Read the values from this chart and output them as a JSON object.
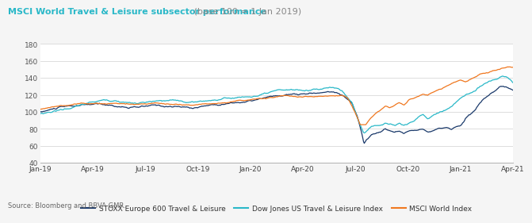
{
  "title_bold": "MSCI World Travel & Leisure subsector performance",
  "title_normal": " (base 100 = 1 Jan 2019)",
  "title_bold_color": "#2ab8c8",
  "title_normal_color": "#888888",
  "source": "Source: Bloomberg and BBVA GMR.",
  "ylim": [
    40,
    180
  ],
  "yticks": [
    40,
    60,
    80,
    100,
    120,
    140,
    160,
    180
  ],
  "xtick_labels": [
    "Jan-19",
    "Apr-19",
    "Jul-19",
    "Oct-19",
    "Jan-20",
    "Apr-20",
    "Jul-20",
    "Oct-20",
    "Jan-21",
    "Apr-21"
  ],
  "colors": {
    "stoxx": "#1b3a6b",
    "dowjones": "#2ab8c8",
    "msci": "#f07820"
  },
  "legend": [
    "STOXX Europe 600 Travel & Leisure",
    "Dow Jones US Travel & Leisure Index",
    "MSCI World Index"
  ],
  "background": "#f5f5f5",
  "plot_bg": "#ffffff",
  "n_points": 650,
  "stoxx_points": [
    [
      0.0,
      100
    ],
    [
      0.04,
      105
    ],
    [
      0.08,
      106
    ],
    [
      0.12,
      107
    ],
    [
      0.16,
      105
    ],
    [
      0.2,
      103
    ],
    [
      0.24,
      104
    ],
    [
      0.28,
      103
    ],
    [
      0.32,
      101
    ],
    [
      0.36,
      105
    ],
    [
      0.4,
      108
    ],
    [
      0.44,
      110
    ],
    [
      0.48,
      113
    ],
    [
      0.52,
      115
    ],
    [
      0.56,
      115
    ],
    [
      0.6,
      117
    ],
    [
      0.62,
      118
    ],
    [
      0.64,
      115
    ],
    [
      0.66,
      105
    ],
    [
      0.67,
      90
    ],
    [
      0.68,
      70
    ],
    [
      0.685,
      57
    ],
    [
      0.69,
      62
    ],
    [
      0.7,
      68
    ],
    [
      0.71,
      70
    ],
    [
      0.72,
      72
    ],
    [
      0.73,
      75
    ],
    [
      0.74,
      73
    ],
    [
      0.75,
      72
    ],
    [
      0.76,
      73
    ],
    [
      0.77,
      70
    ],
    [
      0.78,
      72
    ],
    [
      0.79,
      73
    ],
    [
      0.8,
      74
    ],
    [
      0.81,
      76
    ],
    [
      0.82,
      75
    ],
    [
      0.83,
      76
    ],
    [
      0.84,
      78
    ],
    [
      0.85,
      78
    ],
    [
      0.86,
      79
    ],
    [
      0.87,
      78
    ],
    [
      0.88,
      80
    ],
    [
      0.89,
      82
    ],
    [
      0.9,
      90
    ],
    [
      0.91,
      95
    ],
    [
      0.92,
      100
    ],
    [
      0.93,
      108
    ],
    [
      0.94,
      112
    ],
    [
      0.95,
      115
    ],
    [
      0.96,
      118
    ],
    [
      0.97,
      122
    ],
    [
      0.98,
      124
    ],
    [
      0.99,
      122
    ],
    [
      1.0,
      118
    ]
  ],
  "dj_points": [
    [
      0.0,
      98
    ],
    [
      0.04,
      103
    ],
    [
      0.08,
      108
    ],
    [
      0.12,
      113
    ],
    [
      0.16,
      115
    ],
    [
      0.2,
      112
    ],
    [
      0.24,
      113
    ],
    [
      0.28,
      112
    ],
    [
      0.32,
      110
    ],
    [
      0.36,
      113
    ],
    [
      0.4,
      116
    ],
    [
      0.44,
      118
    ],
    [
      0.48,
      120
    ],
    [
      0.52,
      122
    ],
    [
      0.56,
      121
    ],
    [
      0.6,
      124
    ],
    [
      0.62,
      125
    ],
    [
      0.64,
      120
    ],
    [
      0.66,
      108
    ],
    [
      0.67,
      92
    ],
    [
      0.68,
      78
    ],
    [
      0.685,
      72
    ],
    [
      0.69,
      75
    ],
    [
      0.7,
      80
    ],
    [
      0.71,
      82
    ],
    [
      0.72,
      83
    ],
    [
      0.73,
      85
    ],
    [
      0.74,
      84
    ],
    [
      0.75,
      83
    ],
    [
      0.76,
      85
    ],
    [
      0.77,
      82
    ],
    [
      0.78,
      85
    ],
    [
      0.79,
      87
    ],
    [
      0.8,
      92
    ],
    [
      0.81,
      95
    ],
    [
      0.82,
      90
    ],
    [
      0.83,
      93
    ],
    [
      0.84,
      98
    ],
    [
      0.85,
      100
    ],
    [
      0.86,
      103
    ],
    [
      0.87,
      105
    ],
    [
      0.88,
      110
    ],
    [
      0.89,
      115
    ],
    [
      0.9,
      118
    ],
    [
      0.91,
      120
    ],
    [
      0.92,
      122
    ],
    [
      0.93,
      127
    ],
    [
      0.94,
      130
    ],
    [
      0.95,
      133
    ],
    [
      0.96,
      136
    ],
    [
      0.97,
      138
    ],
    [
      0.98,
      140
    ],
    [
      0.99,
      138
    ],
    [
      1.0,
      133
    ]
  ],
  "msci_points": [
    [
      0.0,
      103
    ],
    [
      0.04,
      107
    ],
    [
      0.08,
      110
    ],
    [
      0.12,
      112
    ],
    [
      0.16,
      112
    ],
    [
      0.2,
      110
    ],
    [
      0.24,
      111
    ],
    [
      0.28,
      109
    ],
    [
      0.32,
      108
    ],
    [
      0.36,
      111
    ],
    [
      0.4,
      113
    ],
    [
      0.44,
      115
    ],
    [
      0.48,
      117
    ],
    [
      0.52,
      119
    ],
    [
      0.56,
      120
    ],
    [
      0.6,
      122
    ],
    [
      0.62,
      124
    ],
    [
      0.64,
      125
    ],
    [
      0.65,
      122
    ],
    [
      0.66,
      112
    ],
    [
      0.67,
      100
    ],
    [
      0.678,
      90
    ],
    [
      0.685,
      87
    ],
    [
      0.69,
      92
    ],
    [
      0.7,
      100
    ],
    [
      0.71,
      105
    ],
    [
      0.72,
      108
    ],
    [
      0.73,
      112
    ],
    [
      0.74,
      110
    ],
    [
      0.75,
      112
    ],
    [
      0.76,
      115
    ],
    [
      0.77,
      112
    ],
    [
      0.78,
      118
    ],
    [
      0.79,
      120
    ],
    [
      0.8,
      122
    ],
    [
      0.81,
      125
    ],
    [
      0.82,
      123
    ],
    [
      0.83,
      126
    ],
    [
      0.84,
      128
    ],
    [
      0.85,
      130
    ],
    [
      0.86,
      133
    ],
    [
      0.87,
      135
    ],
    [
      0.88,
      138
    ],
    [
      0.89,
      140
    ],
    [
      0.9,
      138
    ],
    [
      0.91,
      142
    ],
    [
      0.92,
      144
    ],
    [
      0.93,
      147
    ],
    [
      0.94,
      148
    ],
    [
      0.95,
      150
    ],
    [
      0.96,
      152
    ],
    [
      0.97,
      153
    ],
    [
      0.98,
      155
    ],
    [
      0.99,
      156
    ],
    [
      1.0,
      155
    ]
  ]
}
